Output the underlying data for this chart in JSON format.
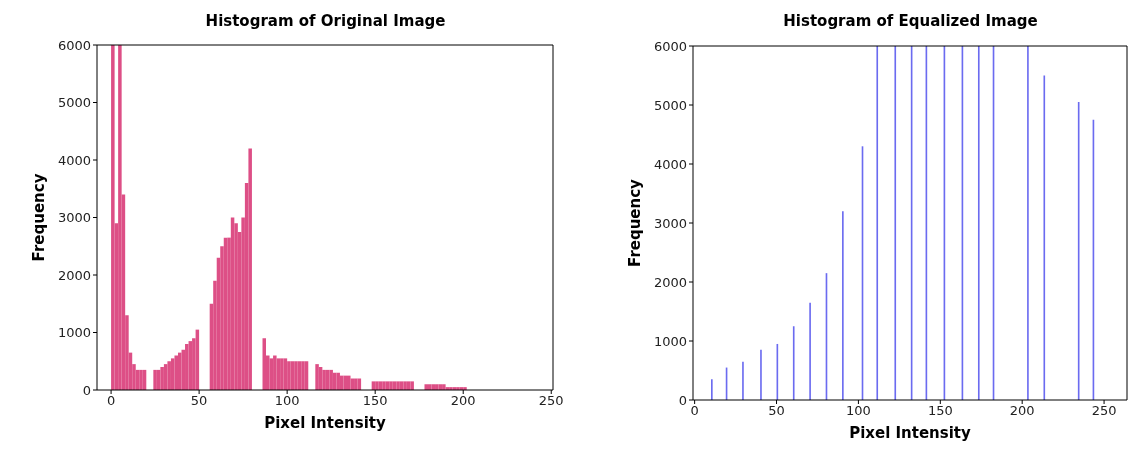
{
  "chart_data": [
    {
      "type": "histogram",
      "title": "Histogram of Original Image",
      "xlabel": "Pixel Intensity",
      "ylabel": "Frequency",
      "color": "#dd4f86",
      "bins": [
        0,
        2,
        4,
        6,
        8,
        10,
        12,
        14,
        16,
        18,
        20,
        22,
        24,
        26,
        28,
        30,
        32,
        34,
        36,
        38,
        40,
        42,
        44,
        46,
        48,
        50,
        52,
        54,
        56,
        58,
        60,
        62,
        64,
        66,
        68,
        70,
        72,
        74,
        76,
        78,
        80,
        82,
        84,
        86,
        88,
        90,
        92,
        94,
        96,
        98,
        100,
        102,
        104,
        106,
        108,
        110,
        112,
        114,
        116,
        118,
        120,
        122,
        124,
        126,
        128,
        130,
        132,
        134,
        136,
        138,
        140,
        142,
        144,
        146,
        148,
        150,
        152,
        154,
        156,
        158,
        160,
        162,
        164,
        166,
        168,
        170,
        172,
        174,
        176,
        178,
        180,
        182,
        184,
        186,
        188,
        190,
        192,
        194,
        196,
        198,
        200,
        202
      ],
      "values": [
        6000,
        2900,
        6000,
        3400,
        1300,
        650,
        450,
        350,
        350,
        350,
        0,
        0,
        350,
        350,
        400,
        450,
        500,
        550,
        600,
        650,
        700,
        800,
        850,
        900,
        1050,
        0,
        0,
        0,
        1500,
        1900,
        2300,
        2500,
        2650,
        2650,
        3000,
        2900,
        2750,
        3000,
        3600,
        4200,
        0,
        0,
        0,
        900,
        600,
        550,
        600,
        550,
        550,
        550,
        500,
        500,
        500,
        500,
        500,
        500,
        0,
        0,
        450,
        400,
        350,
        350,
        350,
        300,
        300,
        250,
        250,
        250,
        200,
        200,
        200,
        0,
        0,
        0,
        150,
        150,
        150,
        150,
        150,
        150,
        150,
        150,
        150,
        150,
        150,
        150,
        0,
        0,
        0,
        100,
        100,
        100,
        100,
        100,
        100,
        50,
        50,
        50,
        50,
        50,
        50
      ],
      "xlim": [
        -8,
        251
      ],
      "ylim": [
        0,
        6000
      ],
      "xticks": [
        0,
        50,
        100,
        150,
        200,
        250
      ],
      "yticks": [
        0,
        1000,
        2000,
        3000,
        4000,
        5000,
        6000
      ]
    },
    {
      "type": "histogram",
      "title": "Histogram of Equalized Image",
      "xlabel": "Pixel Intensity",
      "ylabel": "Frequency",
      "color": "#6b6bf0",
      "bins": [
        10,
        11,
        19,
        20,
        29,
        30,
        40,
        41,
        50,
        51,
        60,
        61,
        70,
        71,
        80,
        81,
        90,
        91,
        102,
        103,
        111,
        112,
        122,
        123,
        132,
        133,
        141,
        142,
        152,
        153,
        163,
        164,
        173,
        174,
        182,
        183,
        203,
        204,
        213,
        214,
        234,
        235,
        243,
        244
      ],
      "values": [
        350,
        0,
        550,
        0,
        650,
        0,
        850,
        0,
        950,
        0,
        1250,
        0,
        1650,
        0,
        2150,
        0,
        3200,
        0,
        4300,
        0,
        6000,
        0,
        6000,
        0,
        6000,
        0,
        6000,
        0,
        6000,
        0,
        6000,
        0,
        6000,
        0,
        6000,
        0,
        6000,
        0,
        5500,
        0,
        5050,
        0,
        4750
      ],
      "xlim": [
        -1,
        264
      ],
      "ylim": [
        0,
        6000
      ],
      "xticks": [
        0,
        50,
        100,
        150,
        200,
        250
      ],
      "yticks": [
        0,
        1000,
        2000,
        3000,
        4000,
        5000,
        6000
      ]
    }
  ]
}
